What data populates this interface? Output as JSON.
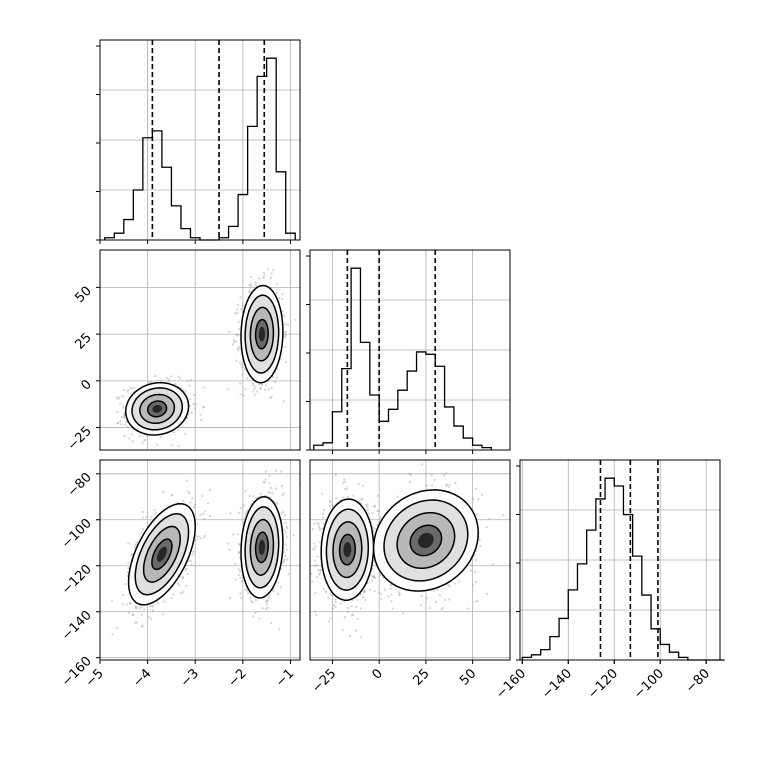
{
  "chart_data": {
    "type": "corner",
    "grid": true,
    "colors": {
      "hist_line": "#000000",
      "quantile_line": "#000000",
      "scatter": "#808080",
      "contour": "#000000"
    },
    "parameters": [
      {
        "range": [
          -5,
          -0.8
        ],
        "ticks": [
          -5,
          -4,
          -3,
          -2,
          -1
        ],
        "tick_labels": [
          "−5",
          "−4",
          "−3",
          "−2",
          "−1"
        ],
        "quantiles": [
          -3.9,
          -2.5,
          -1.55
        ]
      },
      {
        "range": [
          -37,
          70
        ],
        "ticks": [
          -25,
          0,
          25,
          50
        ],
        "tick_labels": [
          "−25",
          "0",
          "25",
          "50"
        ],
        "quantiles": [
          -17,
          0,
          30
        ]
      },
      {
        "range": [
          -161,
          -74
        ],
        "ticks": [
          -160,
          -140,
          -120,
          -100,
          -80
        ],
        "tick_labels": [
          "−160",
          "−140",
          "−120",
          "−100",
          "−80"
        ],
        "quantiles": [
          -126,
          -113,
          -101
        ]
      }
    ],
    "histograms": [
      {
        "param": 0,
        "bin_start": -4.9,
        "bin_width": 0.2,
        "counts": [
          1,
          3,
          9,
          22,
          45,
          48,
          32,
          15,
          5,
          1,
          0,
          0,
          1,
          6,
          20,
          50,
          72,
          80,
          30,
          3
        ]
      },
      {
        "param": 1,
        "bin_start": -35,
        "bin_width": 5,
        "counts": [
          2,
          3,
          16,
          34,
          76,
          45,
          23,
          12,
          17,
          25,
          33,
          41,
          40,
          35,
          18,
          10,
          5,
          2,
          1
        ]
      },
      {
        "param": 2,
        "bin_start": -160,
        "bin_width": 4,
        "counts": [
          1,
          2,
          4,
          9,
          16,
          27,
          37,
          50,
          62,
          70,
          67,
          56,
          40,
          25,
          12,
          6,
          3,
          1,
          0,
          0,
          0,
          0
        ]
      }
    ],
    "pairs": [
      {
        "x": 0,
        "y": 1,
        "clusters": [
          {
            "mean": [
              -3.8,
              -15
            ],
            "sd": [
              0.33,
              7
            ],
            "rho": 0.1,
            "weight": 0.5
          },
          {
            "mean": [
              -1.6,
              25
            ],
            "sd": [
              0.22,
              13
            ],
            "rho": 0.05,
            "weight": 0.5
          }
        ]
      },
      {
        "x": 0,
        "y": 2,
        "clusters": [
          {
            "mean": [
              -3.7,
              -115
            ],
            "sd": [
              0.35,
              11
            ],
            "rho": 0.55,
            "weight": 0.5
          },
          {
            "mean": [
              -1.6,
              -112
            ],
            "sd": [
              0.22,
              11
            ],
            "rho": 0.1,
            "weight": 0.5
          }
        ]
      },
      {
        "x": 1,
        "y": 2,
        "clusters": [
          {
            "mean": [
              -17,
              -113
            ],
            "sd": [
              7,
              11
            ],
            "rho": 0.05,
            "weight": 0.5
          },
          {
            "mean": [
              25,
              -109
            ],
            "sd": [
              14,
              11
            ],
            "rho": 0.15,
            "weight": 0.5
          }
        ]
      }
    ]
  }
}
